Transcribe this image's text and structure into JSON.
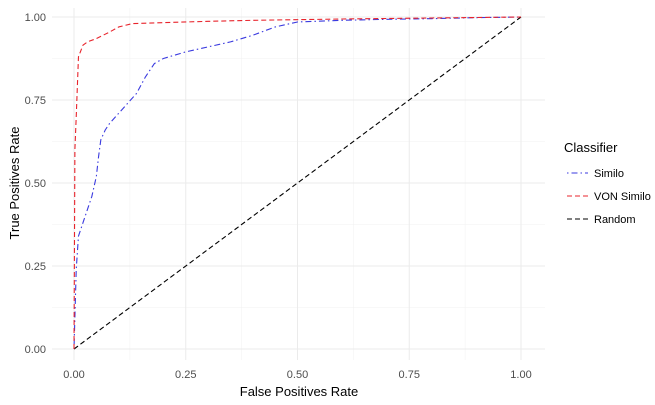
{
  "chart_data": {
    "type": "line",
    "title": "",
    "xlabel": "False Positives Rate",
    "ylabel": "True Positives Rate",
    "xlim": [
      0,
      1
    ],
    "ylim": [
      0,
      1
    ],
    "x_ticks": [
      "0.00",
      "0.25",
      "0.50",
      "0.75",
      "1.00"
    ],
    "y_ticks": [
      "0.00",
      "0.25",
      "0.50",
      "0.75",
      "1.00"
    ],
    "grid": true,
    "legend": {
      "title": "Classifier",
      "placement": "right"
    },
    "series": [
      {
        "name": "Similo",
        "color": "#3a3adf",
        "dash": "dotdash",
        "x": [
          0,
          0.005,
          0.01,
          0.015,
          0.02,
          0.03,
          0.04,
          0.05,
          0.055,
          0.06,
          0.07,
          0.08,
          0.1,
          0.12,
          0.14,
          0.16,
          0.18,
          0.2,
          0.25,
          0.3,
          0.35,
          0.4,
          0.45,
          0.5,
          0.6,
          0.7,
          0.8,
          0.9,
          1.0
        ],
        "y": [
          0,
          0.24,
          0.34,
          0.36,
          0.38,
          0.42,
          0.46,
          0.52,
          0.58,
          0.63,
          0.66,
          0.68,
          0.71,
          0.74,
          0.77,
          0.82,
          0.86,
          0.875,
          0.895,
          0.91,
          0.925,
          0.945,
          0.97,
          0.985,
          0.99,
          0.993,
          0.995,
          0.998,
          1.0
        ]
      },
      {
        "name": "VON Similo",
        "color": "#e8242c",
        "dash": "dashed",
        "x": [
          0,
          0.002,
          0.005,
          0.01,
          0.02,
          0.03,
          0.05,
          0.08,
          0.1,
          0.13,
          0.2,
          0.3,
          0.4,
          0.5,
          0.6,
          0.8,
          1.0
        ],
        "y": [
          0,
          0.6,
          0.7,
          0.88,
          0.915,
          0.925,
          0.935,
          0.955,
          0.97,
          0.98,
          0.983,
          0.987,
          0.99,
          0.992,
          0.994,
          0.997,
          1.0
        ]
      },
      {
        "name": "Random",
        "color": "#000000",
        "dash": "dashed",
        "x": [
          0,
          1
        ],
        "y": [
          0,
          1
        ]
      }
    ]
  }
}
